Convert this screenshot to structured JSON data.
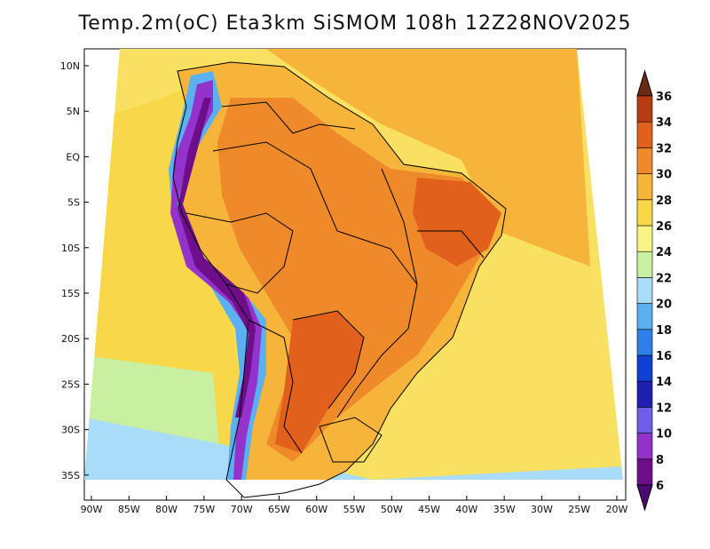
{
  "title": "Temp.2m(oC) Eta3km SiSMOM 108h 12Z28NOV2025",
  "axes": {
    "lon_labels": [
      "90W",
      "85W",
      "80W",
      "75W",
      "70W",
      "65W",
      "60W",
      "55W",
      "50W",
      "45W",
      "40W",
      "35W",
      "30W",
      "25W",
      "20W"
    ],
    "lat_labels": [
      "10N",
      "5N",
      "EQ",
      "5S",
      "10S",
      "15S",
      "20S",
      "25S",
      "30S",
      "35S"
    ]
  },
  "colorbar": {
    "labels": [
      "6",
      "8",
      "10",
      "12",
      "14",
      "16",
      "18",
      "20",
      "22",
      "24",
      "26",
      "28",
      "30",
      "32",
      "34",
      "36"
    ],
    "bins": [
      {
        "lo": 6,
        "color": "#6e0e8a"
      },
      {
        "lo": 8,
        "color": "#9333cc"
      },
      {
        "lo": 10,
        "color": "#6f5fe8"
      },
      {
        "lo": 12,
        "color": "#1f1fb0"
      },
      {
        "lo": 14,
        "color": "#1240d0"
      },
      {
        "lo": 16,
        "color": "#2f7fe8"
      },
      {
        "lo": 18,
        "color": "#5bb0f2"
      },
      {
        "lo": 20,
        "color": "#a8dcf8"
      },
      {
        "lo": 22,
        "color": "#c8f0a0"
      },
      {
        "lo": 24,
        "color": "#f8f488"
      },
      {
        "lo": 26,
        "color": "#f8d848"
      },
      {
        "lo": 28,
        "color": "#f7b43a"
      },
      {
        "lo": 30,
        "color": "#ef8a2a"
      },
      {
        "lo": 32,
        "color": "#e0601c"
      },
      {
        "lo": 34,
        "color": "#b83c12"
      },
      {
        "lo": 36,
        "color": "#6b2a14"
      }
    ],
    "under_color": "#4b0a6e"
  },
  "field_colors": {
    "ocean_north": "#f7b43a",
    "ocean_south": "#f8e060",
    "ocean_cool": "#a8dcf8",
    "land_warm": "#f7b43a",
    "land_hot": "#ef8a2a",
    "land_hotter": "#e0601c",
    "andes_cold": "#6e0e8a",
    "andes_mid": "#9333cc",
    "andes_edge": "#5bb0f2",
    "pacific": "#f8d848",
    "pacific_cool": "#c8f0a0"
  }
}
